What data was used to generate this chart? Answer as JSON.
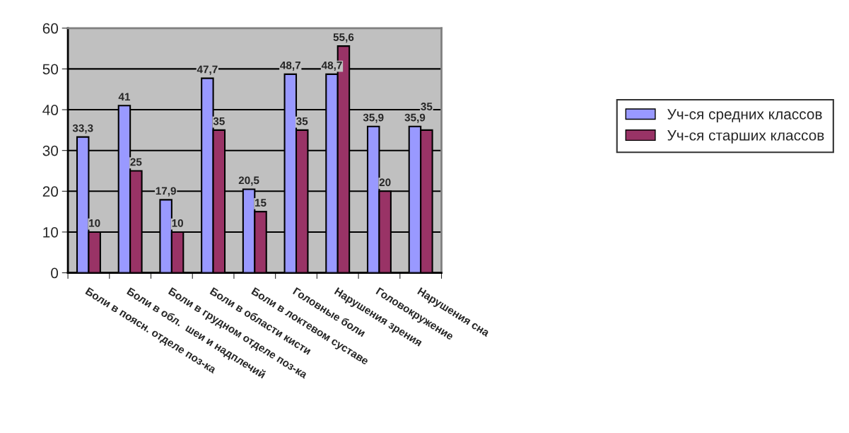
{
  "chart_data": {
    "type": "bar",
    "categories": [
      "Боли в поясн. отделе поз-ка",
      "Боли в обл.  шеи и надплечий",
      "Боли в грудном отделе поз-ка",
      "Боли в области кисти",
      "Боли в локтевом суставе",
      "Головные боли",
      "Нарушения зрения",
      "Головокружение",
      "Нарушения сна"
    ],
    "series": [
      {
        "name": "Уч-ся средних классов",
        "color": "#9999ff",
        "values": [
          33.3,
          41,
          17.9,
          47.7,
          20.5,
          48.7,
          48.7,
          35.9,
          35.9
        ],
        "value_labels": [
          "33,3",
          "41",
          "17,9",
          "47,7",
          "20,5",
          "48,7",
          "48,7",
          "35,9",
          "35,9"
        ]
      },
      {
        "name": "Уч-ся старших классов",
        "color": "#993366",
        "values": [
          10,
          25,
          10,
          35,
          15,
          35,
          55.6,
          20,
          35
        ],
        "value_labels": [
          "10",
          "25",
          "10",
          "35",
          "15",
          "35",
          "55,6",
          "20",
          "35"
        ]
      }
    ],
    "ylim": [
      0,
      60
    ],
    "yticks": [
      0,
      10,
      20,
      30,
      40,
      50,
      60
    ],
    "grid": "y",
    "legend": "right"
  }
}
